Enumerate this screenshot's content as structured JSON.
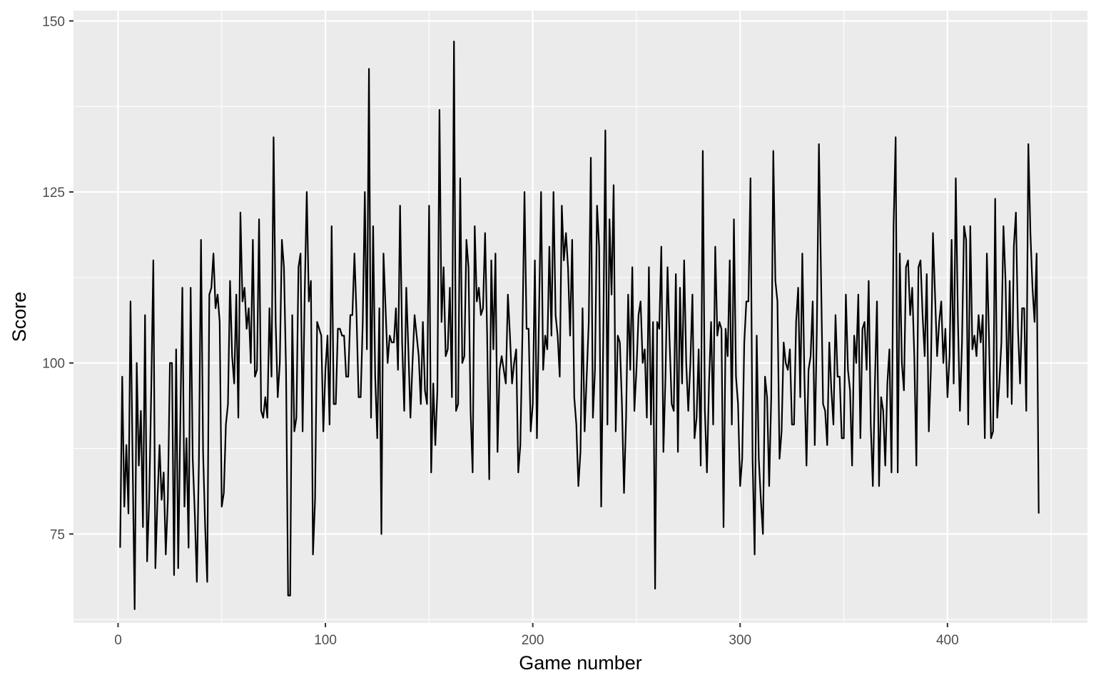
{
  "chart_data": {
    "type": "line",
    "title": "",
    "xlabel": "Game number",
    "ylabel": "Score",
    "xlim": [
      -21.5,
      467.5
    ],
    "ylim": [
      62,
      151.5
    ],
    "x_ticks": [
      0,
      100,
      200,
      300,
      400
    ],
    "y_ticks": [
      75,
      100,
      125,
      150
    ],
    "grid": true,
    "legend": "none",
    "colors": {
      "panel": "#ebebeb",
      "grid": "#ffffff",
      "line": "#000000",
      "tick": "#4d4d4d"
    },
    "series": [
      {
        "x_start": 1,
        "x_step": 1,
        "values": [
          73,
          98,
          79,
          88,
          78,
          109,
          86,
          64,
          100,
          85,
          93,
          76,
          107,
          71,
          80,
          96,
          115,
          70,
          80,
          88,
          80,
          84,
          72,
          80,
          100,
          100,
          69,
          102,
          70,
          91,
          111,
          79,
          89,
          73,
          111,
          86,
          78,
          68,
          86,
          118,
          87,
          76,
          68,
          110,
          111,
          116,
          108,
          110,
          106,
          79,
          81,
          91,
          94,
          112,
          101,
          97,
          110,
          92,
          122,
          109,
          111,
          105,
          108,
          100,
          118,
          98,
          99,
          121,
          93,
          92,
          95,
          92,
          108,
          98,
          133,
          106,
          95,
          100,
          118,
          114,
          99,
          66,
          66,
          107,
          90,
          92,
          114,
          116,
          90,
          110,
          125,
          109,
          112,
          72,
          80,
          106,
          105,
          104,
          90,
          99,
          104,
          91,
          120,
          94,
          94,
          105,
          105,
          104,
          104,
          98,
          98,
          107,
          107,
          116,
          107,
          95,
          95,
          106,
          125,
          102,
          143,
          92,
          120,
          98,
          89,
          108,
          75,
          116,
          108,
          100,
          104,
          103,
          103,
          108,
          99,
          123,
          103,
          93,
          111,
          102,
          92,
          100,
          107,
          104,
          101,
          94,
          106,
          96,
          94,
          123,
          84,
          97,
          88,
          96,
          137,
          106,
          114,
          101,
          102,
          111,
          95,
          147,
          93,
          94,
          127,
          100,
          101,
          118,
          114,
          93,
          84,
          120,
          109,
          111,
          107,
          108,
          119,
          104,
          83,
          115,
          102,
          116,
          87,
          99,
          101,
          99,
          97,
          110,
          104,
          97,
          100,
          102,
          84,
          88,
          104,
          125,
          105,
          105,
          90,
          94,
          115,
          89,
          107,
          125,
          99,
          104,
          102,
          117,
          104,
          125,
          107,
          104,
          98,
          123,
          115,
          119,
          114,
          104,
          118,
          95,
          91,
          82,
          87,
          108,
          90,
          98,
          106,
          130,
          92,
          99,
          123,
          117,
          79,
          104,
          134,
          91,
          121,
          110,
          126,
          90,
          104,
          103,
          94,
          81,
          92,
          110,
          99,
          114,
          93,
          99,
          107,
          109,
          100,
          102,
          92,
          114,
          91,
          106,
          67,
          106,
          105,
          117,
          87,
          98,
          114,
          103,
          94,
          93,
          113,
          87,
          111,
          97,
          115,
          100,
          93,
          100,
          110,
          89,
          92,
          102,
          85,
          131,
          93,
          84,
          97,
          106,
          91,
          117,
          104,
          106,
          105,
          76,
          105,
          101,
          115,
          91,
          121,
          98,
          94,
          82,
          86,
          103,
          109,
          109,
          127,
          86,
          72,
          104,
          86,
          80,
          75,
          98,
          95,
          82,
          95,
          131,
          112,
          109,
          86,
          90,
          103,
          100,
          99,
          102,
          91,
          91,
          106,
          111,
          95,
          116,
          98,
          85,
          99,
          101,
          109,
          88,
          105,
          132,
          113,
          94,
          93,
          88,
          103,
          96,
          91,
          107,
          98,
          98,
          89,
          89,
          110,
          99,
          96,
          85,
          104,
          100,
          110,
          89,
          105,
          106,
          99,
          112,
          91,
          82,
          97,
          109,
          82,
          95,
          93,
          85,
          97,
          102,
          84,
          120,
          133,
          84,
          116,
          100,
          96,
          114,
          115,
          107,
          111,
          101,
          85,
          114,
          115,
          107,
          101,
          113,
          90,
          99,
          119,
          110,
          101,
          106,
          109,
          100,
          105,
          95,
          101,
          118,
          97,
          127,
          107,
          93,
          103,
          120,
          118,
          91,
          120,
          102,
          104,
          101,
          107,
          103,
          107,
          89,
          116,
          104,
          89,
          90,
          124,
          92,
          97,
          103,
          120,
          112,
          95,
          112,
          94,
          117,
          122,
          105,
          97,
          108,
          108,
          93,
          132,
          119,
          111,
          106,
          116,
          78
        ]
      }
    ]
  }
}
